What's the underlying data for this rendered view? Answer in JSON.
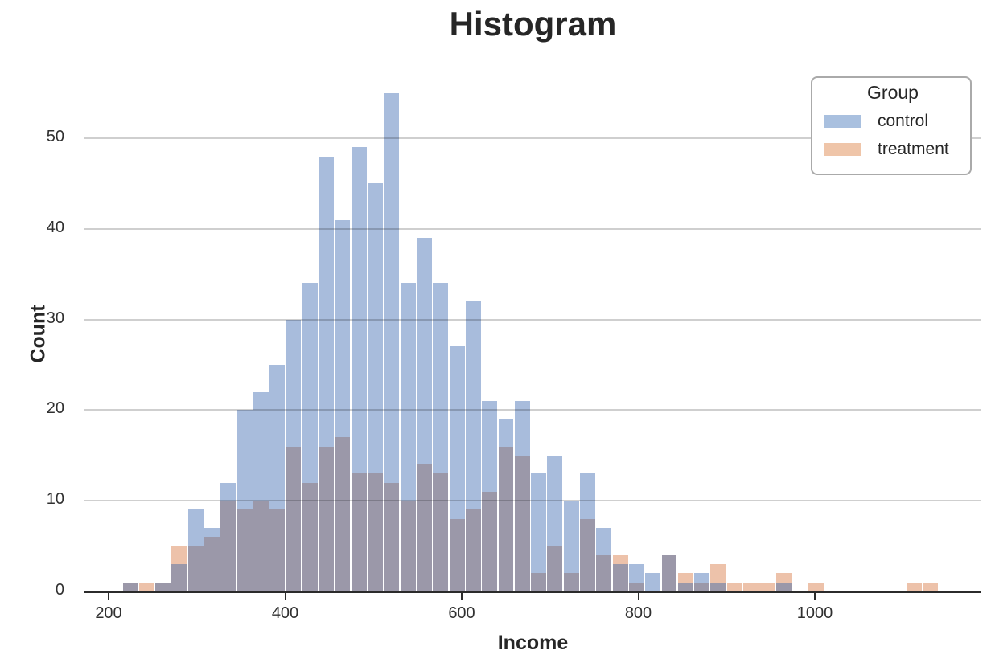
{
  "title": "Histogram",
  "x_axis": {
    "label": "Income",
    "tick_values": [
      200,
      400,
      600,
      800,
      1000
    ]
  },
  "y_axis": {
    "label": "Count",
    "tick_values": [
      0,
      10,
      20,
      30,
      40,
      50
    ]
  },
  "legend": {
    "title": "Group",
    "entries": [
      {
        "label": "control",
        "color": "#a9c0df"
      },
      {
        "label": "treatment",
        "color": "#efc5a9"
      }
    ]
  },
  "colors": {
    "control_fill": "#a8bcdc",
    "treatment_fill": "#edc2aa",
    "overlap_fill": "#9b98a9",
    "gridline": "#cccccc",
    "axis_line": "#2b2b2b",
    "text": "#262626",
    "tick_text": "#303030"
  },
  "chart_data": {
    "type": "bar",
    "subtype": "overlaid-histogram",
    "title": "Histogram",
    "xlabel": "Income",
    "ylabel": "Count",
    "bin_start": 216,
    "bin_width": 18.5,
    "xlim": [
      173,
      1189
    ],
    "ylim": [
      0,
      57
    ],
    "grid": "horizontal",
    "legend_position": "upper right",
    "series": [
      {
        "name": "control",
        "values": [
          1,
          0,
          1,
          3,
          9,
          7,
          12,
          20,
          22,
          25,
          30,
          34,
          48,
          41,
          49,
          45,
          55,
          34,
          39,
          34,
          27,
          32,
          21,
          19,
          21,
          13,
          15,
          10,
          13,
          7,
          3,
          3,
          2,
          4,
          1,
          2,
          1,
          0,
          0,
          0,
          1,
          0,
          0,
          0,
          0,
          0,
          0,
          0,
          0,
          0
        ]
      },
      {
        "name": "treatment",
        "values": [
          1,
          1,
          1,
          5,
          5,
          6,
          10,
          9,
          10,
          9,
          16,
          12,
          16,
          17,
          13,
          13,
          12,
          10,
          14,
          13,
          8,
          9,
          11,
          16,
          15,
          2,
          5,
          2,
          8,
          4,
          4,
          1,
          0,
          4,
          2,
          1,
          3,
          1,
          1,
          1,
          2,
          0,
          1,
          0,
          0,
          0,
          0,
          0,
          1,
          1
        ]
      }
    ]
  }
}
